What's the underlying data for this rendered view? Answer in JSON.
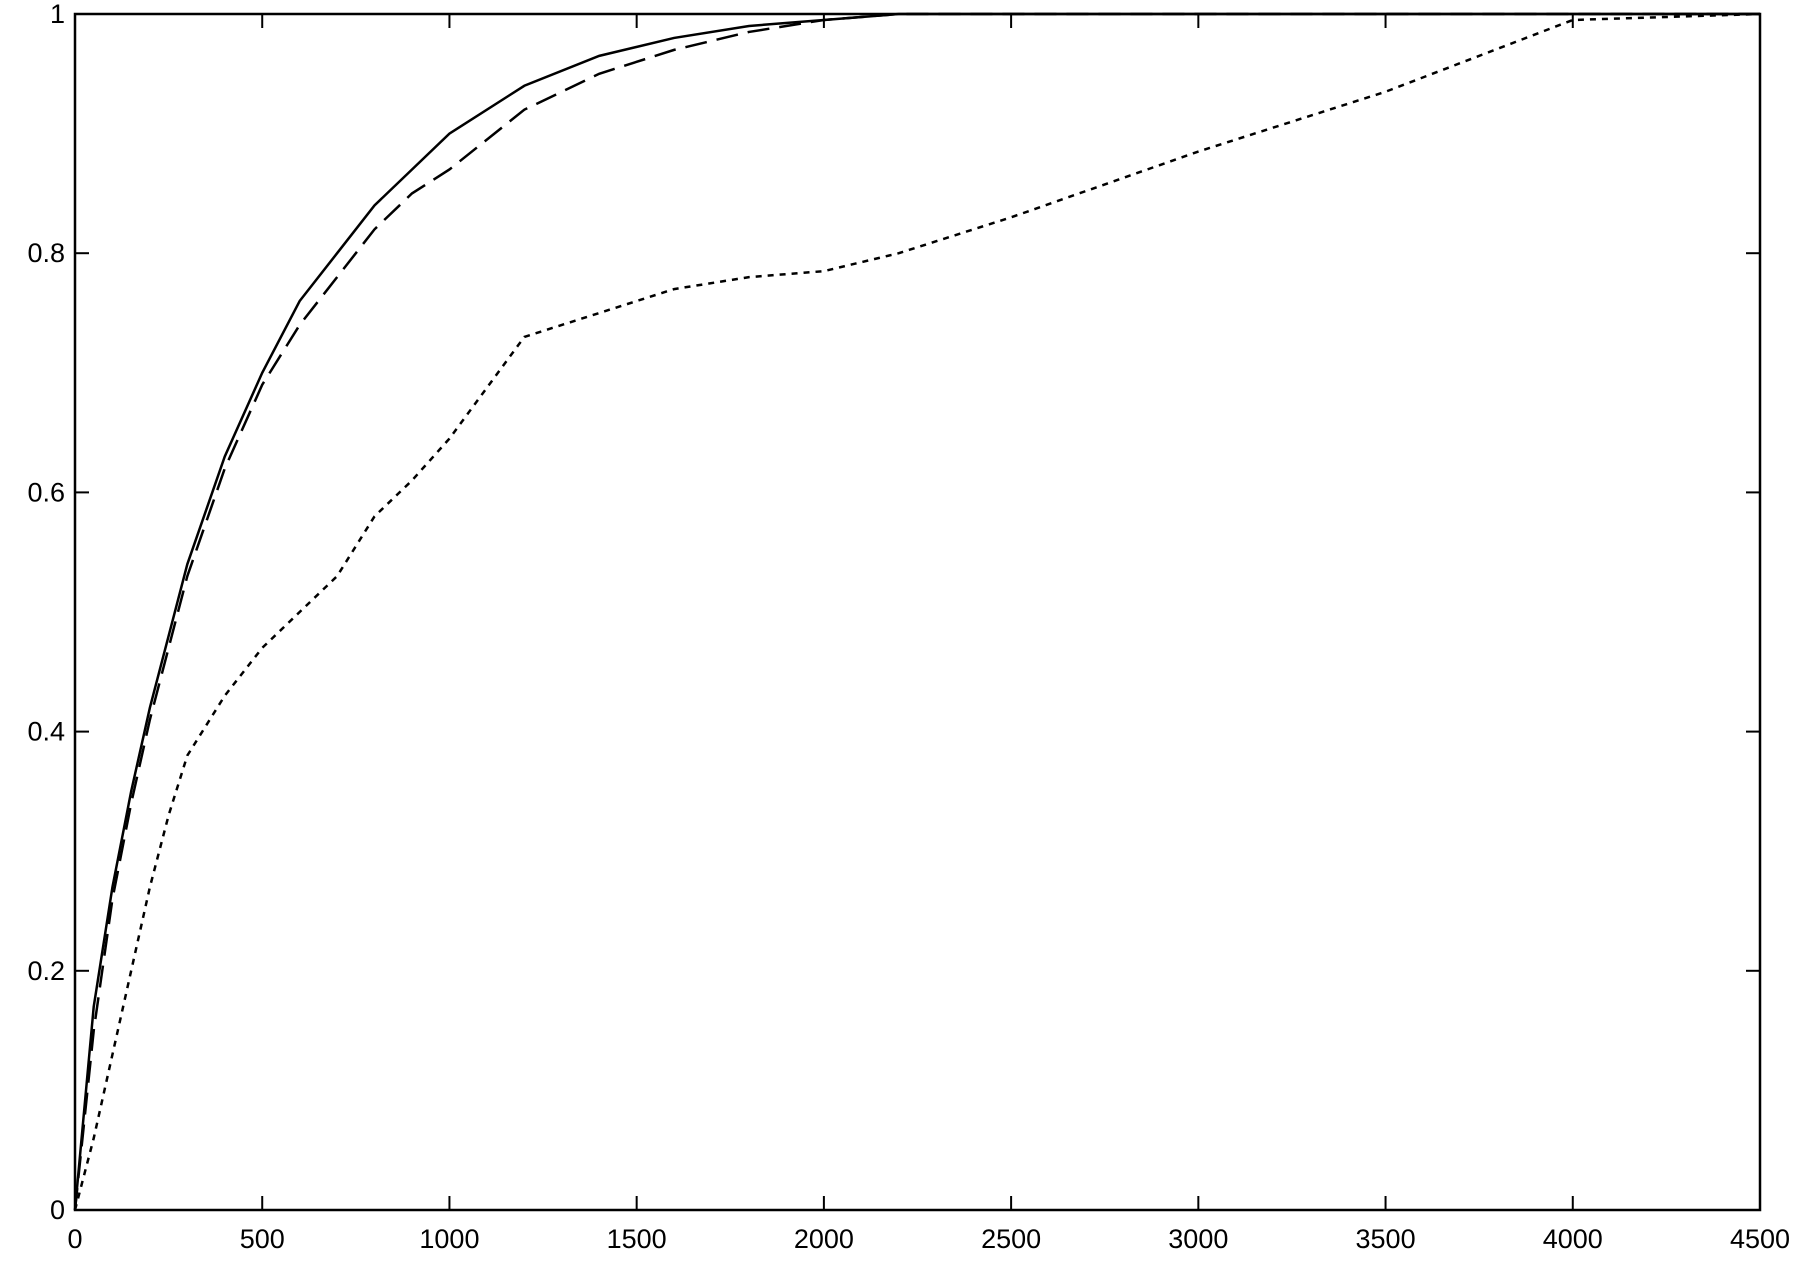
{
  "chart_data": {
    "type": "line",
    "x": [
      0,
      50,
      100,
      150,
      200,
      250,
      300,
      400,
      500,
      600,
      700,
      800,
      900,
      1000,
      1200,
      1400,
      1600,
      1800,
      2000,
      2200,
      2500,
      3000,
      3500,
      4000,
      4500
    ],
    "series": [
      {
        "color": "#000000",
        "dash": "solid",
        "values": [
          0,
          0.17,
          0.27,
          0.35,
          0.42,
          0.48,
          0.54,
          0.63,
          0.7,
          0.76,
          0.8,
          0.84,
          0.87,
          0.9,
          0.94,
          0.965,
          0.98,
          0.99,
          0.995,
          1,
          1,
          1,
          1,
          1,
          1
        ]
      },
      {
        "color": "#000000",
        "dash": "long",
        "values": [
          0,
          0.15,
          0.26,
          0.34,
          0.41,
          0.47,
          0.53,
          0.62,
          0.69,
          0.74,
          0.78,
          0.82,
          0.85,
          0.87,
          0.92,
          0.95,
          0.97,
          0.985,
          0.995,
          1,
          1,
          1,
          1,
          1,
          1
        ]
      },
      {
        "color": "#000000",
        "dash": "short",
        "values": [
          0,
          0.06,
          0.13,
          0.2,
          0.27,
          0.33,
          0.38,
          0.43,
          0.47,
          0.5,
          0.53,
          0.58,
          0.61,
          0.645,
          0.73,
          0.75,
          0.77,
          0.78,
          0.785,
          0.8,
          0.83,
          0.885,
          0.935,
          0.995,
          1
        ]
      }
    ],
    "xlim": [
      0,
      4500
    ],
    "xticks": [
      0,
      500,
      1000,
      1500,
      2000,
      2500,
      3000,
      3500,
      4000,
      4500
    ],
    "ylim": [
      0,
      1
    ],
    "yticks": [
      0,
      0.2,
      0.4,
      0.6,
      0.8,
      1
    ],
    "grid": false
  }
}
